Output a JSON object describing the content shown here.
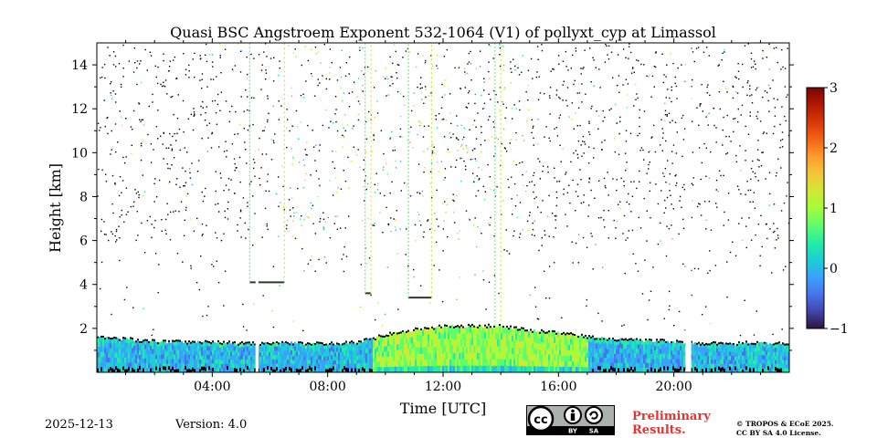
{
  "chart_data": {
    "type": "heatmap",
    "title": "Quasi BSC Angstroem Exponent 532-1064 (V1) of pollyxt_cyp at Limassol",
    "xlabel": "Time [UTC]",
    "ylabel": "Height [km]",
    "xlim_hours": [
      0,
      24
    ],
    "ylim_km": [
      0,
      15
    ],
    "x_ticks": [
      {
        "hour": 4,
        "label": "04:00"
      },
      {
        "hour": 8,
        "label": "08:00"
      },
      {
        "hour": 12,
        "label": "12:00"
      },
      {
        "hour": 16,
        "label": "16:00"
      },
      {
        "hour": 20,
        "label": "20:00"
      }
    ],
    "y_ticks": [
      {
        "km": 2,
        "label": "2"
      },
      {
        "km": 4,
        "label": "4"
      },
      {
        "km": 6,
        "label": "6"
      },
      {
        "km": 8,
        "label": "8"
      },
      {
        "km": 10,
        "label": "10"
      },
      {
        "km": 12,
        "label": "12"
      },
      {
        "km": 14,
        "label": "14"
      }
    ],
    "colorbar": {
      "range": [
        -1,
        3
      ],
      "ticks": [
        {
          "value": 3,
          "label": "3"
        },
        {
          "value": 2,
          "label": "2"
        },
        {
          "value": 1,
          "label": "1"
        },
        {
          "value": 0,
          "label": "0"
        },
        {
          "value": -1,
          "label": "−1"
        }
      ],
      "colormap": [
        "#30123b",
        "#4145ab",
        "#4675ed",
        "#39a2fc",
        "#1bcfd4",
        "#24eca6",
        "#61fc6c",
        "#a4fc3b",
        "#d1e834",
        "#f3c63a",
        "#fe9b2d",
        "#f36315",
        "#d93806",
        "#b11901",
        "#7a0402"
      ]
    },
    "boundary_layer_top_km": [
      [
        0.0,
        1.6
      ],
      [
        2.0,
        1.4
      ],
      [
        4.0,
        1.35
      ],
      [
        5.5,
        1.3
      ],
      [
        6.5,
        1.35
      ],
      [
        8.0,
        1.3
      ],
      [
        9.0,
        1.35
      ],
      [
        10.0,
        1.7
      ],
      [
        11.0,
        1.95
      ],
      [
        12.0,
        2.1
      ],
      [
        13.0,
        2.1
      ],
      [
        14.0,
        2.1
      ],
      [
        15.0,
        1.9
      ],
      [
        16.0,
        1.8
      ],
      [
        17.0,
        1.6
      ],
      [
        18.0,
        1.5
      ],
      [
        19.0,
        1.45
      ],
      [
        20.0,
        1.4
      ],
      [
        21.0,
        1.3
      ],
      [
        22.0,
        1.3
      ],
      [
        23.0,
        1.35
      ],
      [
        24.0,
        1.3
      ]
    ],
    "data_gaps_hours": [
      [
        5.5,
        5.6
      ],
      [
        20.4,
        20.6
      ]
    ],
    "cloud_features": [
      {
        "start_hour": 5.3,
        "end_hour": 6.5,
        "base_km": 4.1
      },
      {
        "start_hour": 9.3,
        "end_hour": 9.5,
        "base_km": 3.6
      },
      {
        "start_hour": 10.8,
        "end_hour": 11.6,
        "base_km": 3.4
      },
      {
        "start_hour": 13.8,
        "end_hour": 14.0,
        "base_km": 1.3
      }
    ]
  },
  "footer": {
    "date": "2025-12-13",
    "version": "Version: 4.0",
    "preliminary_line1": "Preliminary",
    "preliminary_line2": "Results.",
    "copyright_line1": "© TROPOS & ECoE 2025.",
    "copyright_line2": "CC BY SA 4.0 License."
  },
  "license_badge": {
    "cc": "cc",
    "by": "BY",
    "sa": "SA"
  }
}
